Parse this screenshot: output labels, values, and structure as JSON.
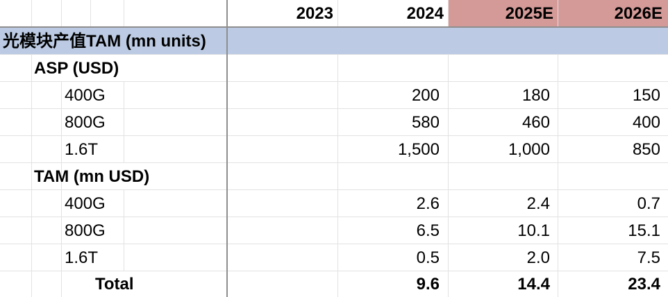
{
  "colors": {
    "estimate_header_bg": "#d49a98",
    "section_band_bg": "#bccbe3",
    "grid": "#e2e2e2",
    "frozen_border": "#8e8e8e"
  },
  "header": {
    "years": [
      "2023",
      "2024",
      "2025E",
      "2026E"
    ]
  },
  "section_title": "光模块产值TAM (mn units)",
  "asp": {
    "label": "ASP (USD)",
    "rows": [
      {
        "name": "400G",
        "v2023": "",
        "v2024": "200",
        "v2025": "180",
        "v2026": "150"
      },
      {
        "name": "800G",
        "v2023": "",
        "v2024": "580",
        "v2025": "460",
        "v2026": "400"
      },
      {
        "name": "1.6T",
        "v2023": "",
        "v2024": "1,500",
        "v2025": "1,000",
        "v2026": "850"
      }
    ]
  },
  "tam": {
    "label": "TAM (mn USD)",
    "rows": [
      {
        "name": "400G",
        "v2023": "",
        "v2024": "2.6",
        "v2025": "2.4",
        "v2026": "0.7"
      },
      {
        "name": "800G",
        "v2023": "",
        "v2024": "6.5",
        "v2025": "10.1",
        "v2026": "15.1"
      },
      {
        "name": "1.6T",
        "v2023": "",
        "v2024": "0.5",
        "v2025": "2.0",
        "v2026": "7.5"
      }
    ],
    "total": {
      "label": "Total",
      "v2023": "",
      "v2024": "9.6",
      "v2025": "14.4",
      "v2026": "23.4"
    }
  }
}
